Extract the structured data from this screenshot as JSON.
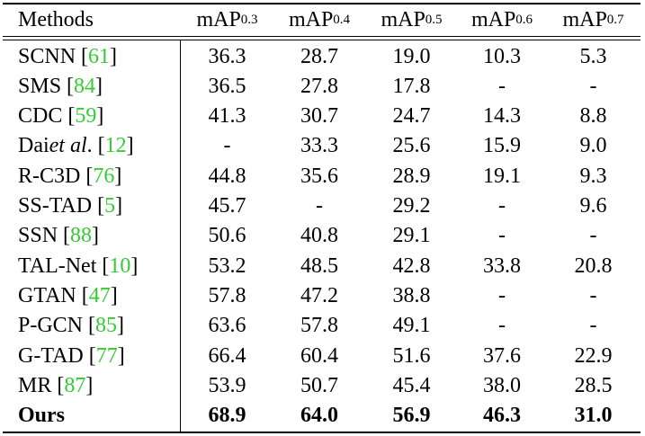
{
  "header": {
    "methods": "Methods",
    "metric_base": "mAP",
    "thresholds": [
      "0.3",
      "0.4",
      "0.5",
      "0.6",
      "0.7"
    ]
  },
  "rows": [
    {
      "name": "SCNN",
      "name_italic": "",
      "name_suffix": "",
      "cite": "61",
      "values": [
        "36.3",
        "28.7",
        "19.0",
        "10.3",
        "5.3"
      ],
      "bold": false
    },
    {
      "name": "SMS",
      "name_italic": "",
      "name_suffix": "",
      "cite": "84",
      "values": [
        "36.5",
        "27.8",
        "17.8",
        "-",
        "-"
      ],
      "bold": false
    },
    {
      "name": "CDC",
      "name_italic": "",
      "name_suffix": "",
      "cite": "59",
      "values": [
        "41.3",
        "30.7",
        "24.7",
        "14.3",
        "8.8"
      ],
      "bold": false
    },
    {
      "name": "Dai ",
      "name_italic": "et al",
      "name_suffix": ".",
      "cite": "12",
      "values": [
        "-",
        "33.3",
        "25.6",
        "15.9",
        "9.0"
      ],
      "bold": false
    },
    {
      "name": "R-C3D",
      "name_italic": "",
      "name_suffix": "",
      "cite": "76",
      "values": [
        "44.8",
        "35.6",
        "28.9",
        "19.1",
        "9.3"
      ],
      "bold": false
    },
    {
      "name": "SS-TAD",
      "name_italic": "",
      "name_suffix": "",
      "cite": "5",
      "values": [
        "45.7",
        "-",
        "29.2",
        "-",
        "9.6"
      ],
      "bold": false
    },
    {
      "name": "SSN",
      "name_italic": "",
      "name_suffix": "",
      "cite": "88",
      "values": [
        "50.6",
        "40.8",
        "29.1",
        "-",
        "-"
      ],
      "bold": false
    },
    {
      "name": "TAL-Net",
      "name_italic": "",
      "name_suffix": "",
      "cite": "10",
      "values": [
        "53.2",
        "48.5",
        "42.8",
        "33.8",
        "20.8"
      ],
      "bold": false
    },
    {
      "name": "GTAN",
      "name_italic": "",
      "name_suffix": "",
      "cite": "47",
      "values": [
        "57.8",
        "47.2",
        "38.8",
        "-",
        "-"
      ],
      "bold": false
    },
    {
      "name": "P-GCN",
      "name_italic": "",
      "name_suffix": "",
      "cite": "85",
      "values": [
        "63.6",
        "57.8",
        "49.1",
        "-",
        "-"
      ],
      "bold": false
    },
    {
      "name": "G-TAD",
      "name_italic": "",
      "name_suffix": "",
      "cite": "77",
      "values": [
        "66.4",
        "60.4",
        "51.6",
        "37.6",
        "22.9"
      ],
      "bold": false
    },
    {
      "name": "MR",
      "name_italic": "",
      "name_suffix": "",
      "cite": "87",
      "values": [
        "53.9",
        "50.7",
        "45.4",
        "38.0",
        "28.5"
      ],
      "bold": false
    },
    {
      "name": "Ours",
      "name_italic": "",
      "name_suffix": "",
      "cite": "",
      "values": [
        "68.9",
        "64.0",
        "56.9",
        "46.3",
        "31.0"
      ],
      "bold": true
    }
  ],
  "colors": {
    "citation": "#33cc33",
    "text": "#000000",
    "rule": "#000000"
  }
}
